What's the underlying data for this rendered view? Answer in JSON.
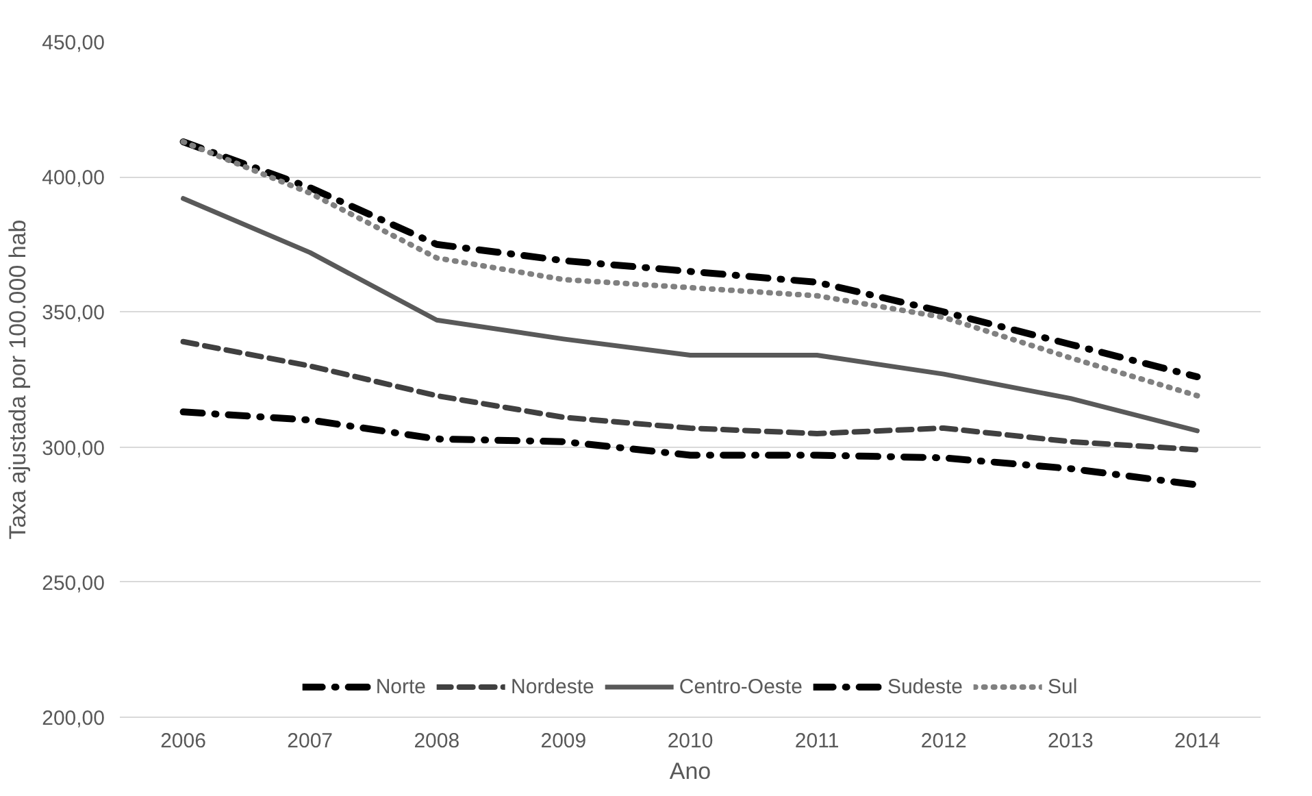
{
  "chart_data": {
    "type": "line",
    "xlabel": "Ano",
    "ylabel": "Taxa ajustada por 100.000 hab",
    "categories": [
      "2006",
      "2007",
      "2008",
      "2009",
      "2010",
      "2011",
      "2012",
      "2013",
      "2014"
    ],
    "series": [
      {
        "name": "Norte",
        "color": "#000000",
        "line_style": "dashdot",
        "values": [
          413,
          396,
          375,
          369,
          365,
          361,
          350,
          338,
          326
        ]
      },
      {
        "name": "Nordeste",
        "color": "#404040",
        "line_style": "dashed",
        "values": [
          339,
          330,
          319,
          311,
          307,
          305,
          307,
          302,
          299
        ]
      },
      {
        "name": "Centro-Oeste",
        "color": "#595959",
        "line_style": "solid",
        "values": [
          392,
          372,
          347,
          340,
          334,
          334,
          327,
          318,
          306
        ]
      },
      {
        "name": "Sudeste",
        "color": "#000000",
        "line_style": "dashdot",
        "values": [
          313,
          310,
          303,
          302,
          297,
          297,
          296,
          292,
          286
        ]
      },
      {
        "name": "Sul",
        "color": "#808080",
        "line_style": "dotted",
        "values": [
          413,
          394,
          370,
          362,
          359,
          356,
          348,
          333,
          319
        ]
      }
    ],
    "ylim": [
      200,
      450
    ],
    "yticks": [
      {
        "value": 200,
        "label": "200,00"
      },
      {
        "value": 250,
        "label": "250,00"
      },
      {
        "value": 300,
        "label": "300,00"
      },
      {
        "value": 350,
        "label": "350,00"
      },
      {
        "value": 400,
        "label": "400,00"
      },
      {
        "value": 450,
        "label": "450,00"
      }
    ],
    "grid": "y",
    "legend": "bottom",
    "marker": "none"
  }
}
